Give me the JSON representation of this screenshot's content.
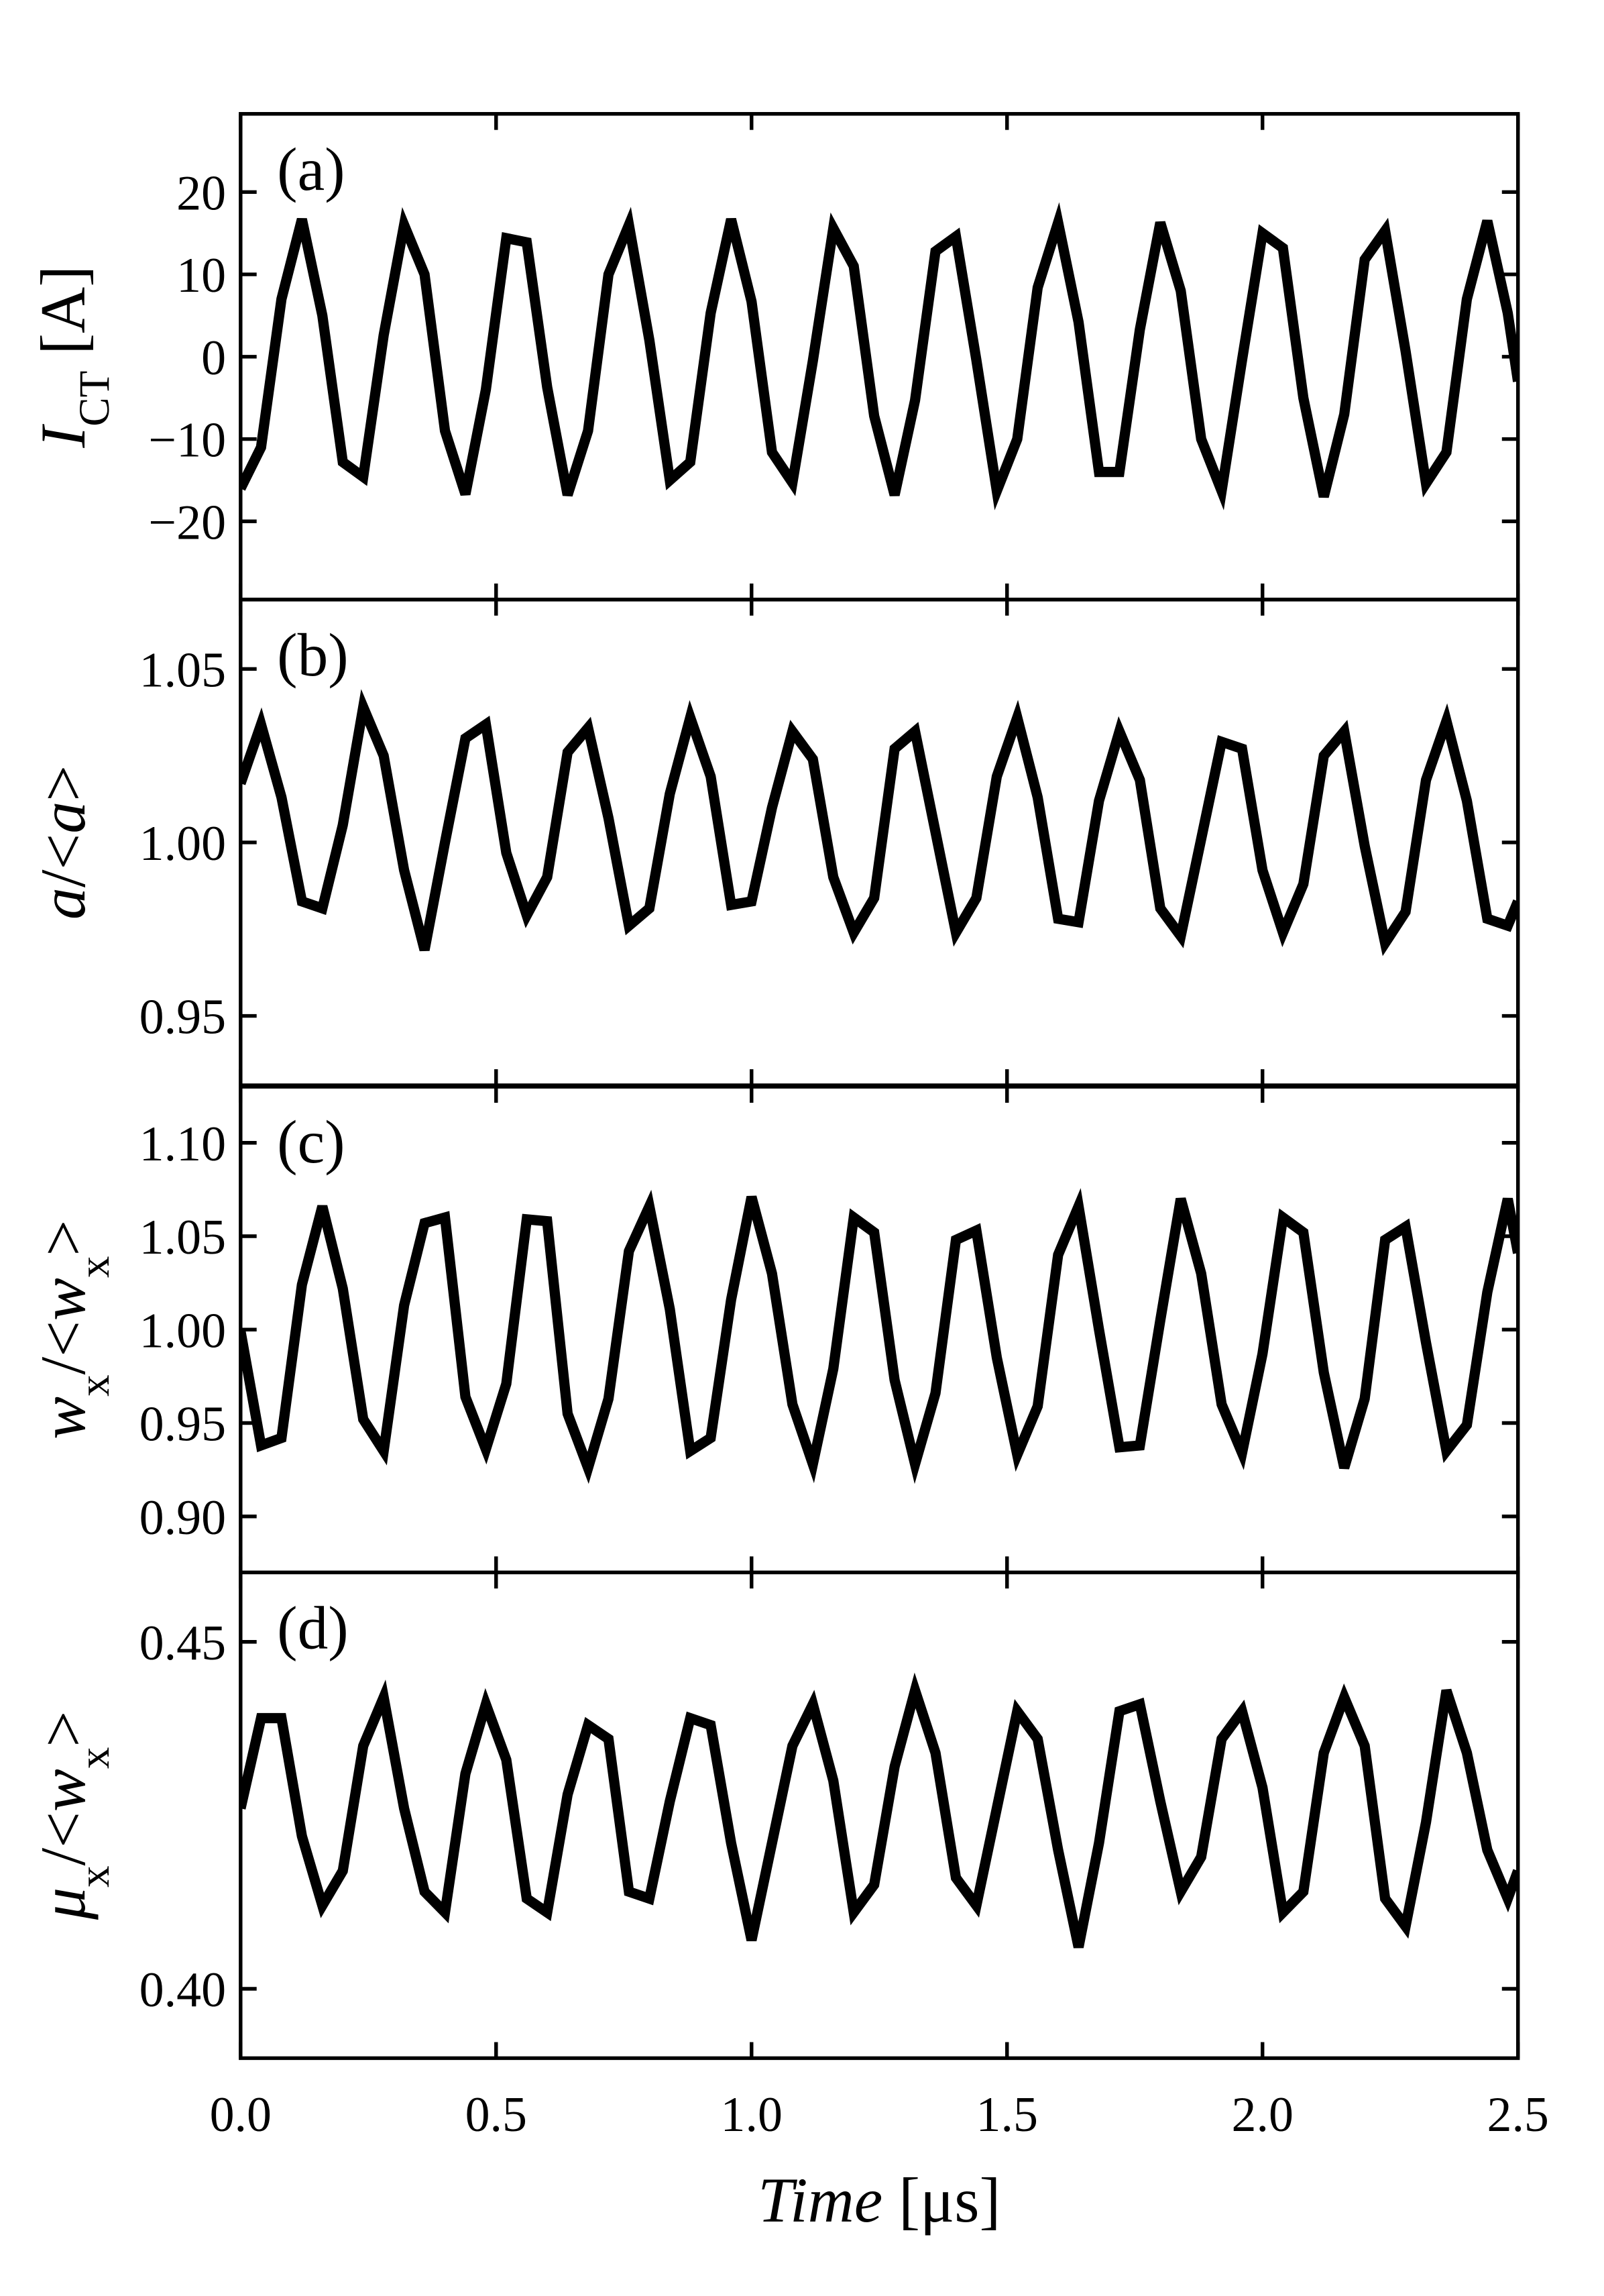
{
  "chart_data": [
    {
      "type": "line",
      "label": "(a)",
      "ylabel": [
        {
          "text": "I",
          "style": "italic"
        },
        {
          "text": "CT",
          "style": "sub"
        },
        {
          "text": " [A]",
          "style": "normal"
        }
      ],
      "x": [
        0,
        0.04,
        0.08,
        0.12,
        0.16,
        0.2,
        0.24,
        0.28,
        0.32,
        0.36,
        0.4,
        0.44,
        0.48,
        0.52,
        0.56,
        0.6,
        0.64,
        0.68,
        0.72,
        0.76,
        0.8,
        0.84,
        0.88,
        0.92,
        0.96,
        1,
        1.04,
        1.08,
        1.12,
        1.16,
        1.2,
        1.24,
        1.28,
        1.32,
        1.36,
        1.4,
        1.44,
        1.48,
        1.52,
        1.56,
        1.6,
        1.64,
        1.68,
        1.72,
        1.76,
        1.8,
        1.84,
        1.88,
        1.92,
        1.96,
        2,
        2.04,
        2.08,
        2.12,
        2.16,
        2.2,
        2.24,
        2.28,
        2.32,
        2.36,
        2.4,
        2.44,
        2.48,
        2.5
      ],
      "values": [
        -16,
        -11,
        7,
        16.7,
        5,
        -12.8,
        -14.6,
        2.6,
        16,
        10,
        -9,
        -16.7,
        -4,
        14.4,
        13.9,
        -3.7,
        -16.8,
        -9,
        10,
        16,
        2,
        -15,
        -12.8,
        5.3,
        16.7,
        6.7,
        -11.6,
        -15.3,
        -0.5,
        15.6,
        11,
        -7.2,
        -16.8,
        -5.3,
        12.8,
        14.6,
        -0.4,
        -16.3,
        -10,
        8.4,
        16.3,
        4.2,
        -14,
        -14,
        3.3,
        16.3,
        8,
        -10,
        -16.3,
        -0.4,
        15,
        13.2,
        -5,
        -17,
        -7,
        11.8,
        15.3,
        0.7,
        -15.4,
        -11.6,
        7,
        16.5,
        5.3,
        -3
      ],
      "color": "#000000",
      "ylim": [
        -29.5,
        29.5
      ],
      "yticks": [
        {
          "value": -20,
          "label": "−20"
        },
        {
          "value": -10,
          "label": "−10"
        },
        0,
        10,
        20
      ]
    },
    {
      "type": "line",
      "label": "(b)",
      "ylabel": [
        {
          "text": "a",
          "style": "italic"
        },
        {
          "text": "/<",
          "style": "normal"
        },
        {
          "text": "a",
          "style": "italic"
        },
        {
          "text": ">",
          "style": "normal"
        }
      ],
      "x": [
        0,
        0.04,
        0.08,
        0.12,
        0.16,
        0.2,
        0.24,
        0.28,
        0.32,
        0.36,
        0.4,
        0.44,
        0.48,
        0.52,
        0.56,
        0.6,
        0.64,
        0.68,
        0.72,
        0.76,
        0.8,
        0.84,
        0.88,
        0.92,
        0.96,
        1,
        1.04,
        1.08,
        1.12,
        1.16,
        1.2,
        1.24,
        1.28,
        1.32,
        1.36,
        1.4,
        1.44,
        1.48,
        1.52,
        1.56,
        1.6,
        1.64,
        1.68,
        1.72,
        1.76,
        1.8,
        1.84,
        1.88,
        1.92,
        1.96,
        2,
        2.04,
        2.08,
        2.12,
        2.16,
        2.2,
        2.24,
        2.28,
        2.32,
        2.36,
        2.4,
        2.44,
        2.48,
        2.5
      ],
      "values": [
        1.017,
        1.034,
        1.013,
        0.983,
        0.981,
        1.005,
        1.039,
        1.025,
        0.992,
        0.969,
        1.0,
        1.03,
        1.034,
        0.997,
        0.979,
        0.99,
        1.026,
        1.033,
        1.007,
        0.976,
        0.981,
        1.014,
        1.036,
        1.019,
        0.982,
        0.983,
        1.01,
        1.032,
        1.024,
        0.99,
        0.974,
        0.984,
        1.027,
        1.032,
        1.003,
        0.974,
        0.984,
        1.019,
        1.036,
        1.013,
        0.978,
        0.977,
        1.012,
        1.032,
        1.018,
        0.981,
        0.973,
        1.001,
        1.029,
        1.027,
        0.992,
        0.974,
        0.988,
        1.025,
        1.032,
        0.999,
        0.971,
        0.98,
        1.018,
        1.035,
        1.012,
        0.978,
        0.976,
        0.983
      ],
      "color": "#000000",
      "ylim": [
        0.93,
        1.07
      ],
      "yticks": [
        0.95,
        {
          "value": 1,
          "label": "1.00"
        },
        1.05
      ]
    },
    {
      "type": "line",
      "label": "(c)",
      "ylabel": [
        {
          "text": "w",
          "style": "italic"
        },
        {
          "text": "x",
          "style": "sub"
        },
        {
          "text": "/<",
          "style": "normal"
        },
        {
          "text": "w",
          "style": "italic"
        },
        {
          "text": "x",
          "style": "sub"
        },
        {
          "text": ">",
          "style": "normal"
        }
      ],
      "x": [
        0,
        0.04,
        0.08,
        0.12,
        0.16,
        0.2,
        0.24,
        0.28,
        0.32,
        0.36,
        0.4,
        0.44,
        0.48,
        0.52,
        0.56,
        0.6,
        0.64,
        0.68,
        0.72,
        0.76,
        0.8,
        0.84,
        0.88,
        0.92,
        0.96,
        1,
        1.04,
        1.08,
        1.12,
        1.16,
        1.2,
        1.24,
        1.28,
        1.32,
        1.36,
        1.4,
        1.44,
        1.48,
        1.52,
        1.56,
        1.6,
        1.64,
        1.68,
        1.72,
        1.76,
        1.8,
        1.84,
        1.88,
        1.92,
        1.96,
        2,
        2.04,
        2.08,
        2.12,
        2.16,
        2.2,
        2.24,
        2.28,
        2.32,
        2.36,
        2.4,
        2.44,
        2.48,
        2.5
      ],
      "values": [
        0.999,
        0.938,
        0.942,
        1.024,
        1.066,
        1.022,
        0.952,
        0.935,
        1.013,
        1.057,
        1.06,
        0.964,
        0.936,
        0.971,
        1.059,
        1.058,
        0.955,
        0.926,
        0.963,
        1.042,
        1.066,
        1.011,
        0.935,
        0.942,
        1.016,
        1.071,
        1.03,
        0.96,
        0.928,
        0.979,
        1.06,
        1.052,
        0.973,
        0.928,
        0.966,
        1.048,
        1.053,
        0.985,
        0.933,
        0.959,
        1.04,
        1.066,
        1.0,
        0.937,
        0.938,
        1.005,
        1.07,
        1.03,
        0.96,
        0.934,
        0.987,
        1.06,
        1.052,
        0.977,
        0.926,
        0.963,
        1.048,
        1.055,
        0.993,
        0.935,
        0.949,
        1.02,
        1.07,
        1.041
      ],
      "color": "#000000",
      "ylim": [
        0.87,
        1.13
      ],
      "yticks": [
        {
          "value": 0.9,
          "label": "0.90"
        },
        0.95,
        {
          "value": 1,
          "label": "1.00"
        },
        1.05,
        {
          "value": 1.1,
          "label": "1.10"
        }
      ]
    },
    {
      "type": "line",
      "label": "(d)",
      "ylabel": [
        {
          "text": "μ",
          "style": "italic"
        },
        {
          "text": "x",
          "style": "sub"
        },
        {
          "text": "/<",
          "style": "normal"
        },
        {
          "text": "w",
          "style": "italic"
        },
        {
          "text": "x",
          "style": "sub"
        },
        {
          "text": ">",
          "style": "normal"
        }
      ],
      "x": [
        0,
        0.04,
        0.08,
        0.12,
        0.16,
        0.2,
        0.24,
        0.28,
        0.32,
        0.36,
        0.4,
        0.44,
        0.48,
        0.52,
        0.56,
        0.6,
        0.64,
        0.68,
        0.72,
        0.76,
        0.8,
        0.84,
        0.88,
        0.92,
        0.96,
        1,
        1.04,
        1.08,
        1.12,
        1.16,
        1.2,
        1.24,
        1.28,
        1.32,
        1.36,
        1.4,
        1.44,
        1.48,
        1.52,
        1.56,
        1.6,
        1.64,
        1.68,
        1.72,
        1.76,
        1.8,
        1.84,
        1.88,
        1.92,
        1.96,
        2,
        2.04,
        2.08,
        2.12,
        2.16,
        2.2,
        2.24,
        2.28,
        2.32,
        2.36,
        2.4,
        2.44,
        2.48,
        2.5
      ],
      "values": [
        0.426,
        0.439,
        0.439,
        0.422,
        0.412,
        0.417,
        0.435,
        0.442,
        0.426,
        0.414,
        0.411,
        0.431,
        0.441,
        0.433,
        0.413,
        0.411,
        0.428,
        0.438,
        0.436,
        0.414,
        0.413,
        0.427,
        0.439,
        0.438,
        0.421,
        0.407,
        0.421,
        0.435,
        0.441,
        0.43,
        0.411,
        0.415,
        0.432,
        0.443,
        0.434,
        0.416,
        0.412,
        0.426,
        0.44,
        0.436,
        0.42,
        0.406,
        0.421,
        0.44,
        0.441,
        0.427,
        0.414,
        0.419,
        0.436,
        0.44,
        0.429,
        0.411,
        0.414,
        0.434,
        0.442,
        0.435,
        0.413,
        0.409,
        0.424,
        0.443,
        0.434,
        0.42,
        0.413,
        0.417
      ],
      "color": "#000000",
      "ylim": [
        0.39,
        0.46
      ],
      "yticks": [
        {
          "value": 0.4,
          "label": "0.40"
        },
        0.45
      ],
      "xlim": [
        0,
        2.5
      ],
      "xticks": [
        {
          "value": 0,
          "label": "0.0"
        },
        0.5,
        {
          "value": 1,
          "label": "1.0"
        },
        1.5,
        {
          "value": 2,
          "label": "2.0"
        },
        2.5
      ],
      "xlabel": [
        {
          "text": "Time",
          "style": "italic"
        },
        {
          "text": " [μs]",
          "style": "normal"
        }
      ]
    }
  ]
}
